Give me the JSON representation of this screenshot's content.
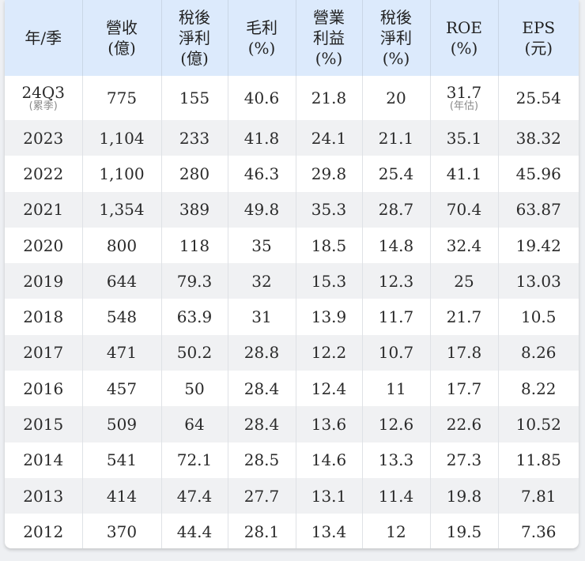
{
  "headers": [
    {
      "lines": [
        "年/季"
      ]
    },
    {
      "lines": [
        "營收",
        "(億)"
      ]
    },
    {
      "lines": [
        "稅後",
        "淨利",
        "(億)"
      ]
    },
    {
      "lines": [
        "毛利",
        "(%)"
      ]
    },
    {
      "lines": [
        "營業",
        "利益",
        "(%)"
      ]
    },
    {
      "lines": [
        "稅後",
        "淨利",
        "(%)"
      ]
    },
    {
      "lines": [
        "ROE",
        "(%)"
      ]
    },
    {
      "lines": [
        "EPS",
        "(元)"
      ]
    }
  ],
  "rows": [
    {
      "year": "24Q3",
      "year_note": "(累季)",
      "revenue": "775",
      "net_income": "155",
      "gross_margin": "40.6",
      "operating_margin": "21.8",
      "net_margin": "20",
      "roe": "31.7",
      "roe_note": "(年估)",
      "eps": "25.54"
    },
    {
      "year": "2023",
      "revenue": "1,104",
      "net_income": "233",
      "gross_margin": "41.8",
      "operating_margin": "24.1",
      "net_margin": "21.1",
      "roe": "35.1",
      "eps": "38.32"
    },
    {
      "year": "2022",
      "revenue": "1,100",
      "net_income": "280",
      "gross_margin": "46.3",
      "operating_margin": "29.8",
      "net_margin": "25.4",
      "roe": "41.1",
      "eps": "45.96"
    },
    {
      "year": "2021",
      "revenue": "1,354",
      "net_income": "389",
      "gross_margin": "49.8",
      "operating_margin": "35.3",
      "net_margin": "28.7",
      "roe": "70.4",
      "eps": "63.87"
    },
    {
      "year": "2020",
      "revenue": "800",
      "net_income": "118",
      "gross_margin": "35",
      "operating_margin": "18.5",
      "net_margin": "14.8",
      "roe": "32.4",
      "eps": "19.42"
    },
    {
      "year": "2019",
      "revenue": "644",
      "net_income": "79.3",
      "gross_margin": "32",
      "operating_margin": "15.3",
      "net_margin": "12.3",
      "roe": "25",
      "eps": "13.03"
    },
    {
      "year": "2018",
      "revenue": "548",
      "net_income": "63.9",
      "gross_margin": "31",
      "operating_margin": "13.9",
      "net_margin": "11.7",
      "roe": "21.7",
      "eps": "10.5"
    },
    {
      "year": "2017",
      "revenue": "471",
      "net_income": "50.2",
      "gross_margin": "28.8",
      "operating_margin": "12.2",
      "net_margin": "10.7",
      "roe": "17.8",
      "eps": "8.26"
    },
    {
      "year": "2016",
      "revenue": "457",
      "net_income": "50",
      "gross_margin": "28.4",
      "operating_margin": "12.4",
      "net_margin": "11",
      "roe": "17.7",
      "eps": "8.22"
    },
    {
      "year": "2015",
      "revenue": "509",
      "net_income": "64",
      "gross_margin": "28.4",
      "operating_margin": "13.6",
      "net_margin": "12.6",
      "roe": "22.6",
      "eps": "10.52"
    },
    {
      "year": "2014",
      "revenue": "541",
      "net_income": "72.1",
      "gross_margin": "28.5",
      "operating_margin": "14.6",
      "net_margin": "13.3",
      "roe": "27.3",
      "eps": "11.85"
    },
    {
      "year": "2013",
      "revenue": "414",
      "net_income": "47.4",
      "gross_margin": "27.7",
      "operating_margin": "13.1",
      "net_margin": "11.4",
      "roe": "19.8",
      "eps": "7.81"
    },
    {
      "year": "2012",
      "revenue": "370",
      "net_income": "44.4",
      "gross_margin": "28.1",
      "operating_margin": "13.4",
      "net_margin": "12",
      "roe": "19.5",
      "eps": "7.36"
    }
  ],
  "colors": {
    "header_background": "#dceafc",
    "striped_row_background": "#f0f1f3",
    "note_text": "#8a8a8a"
  }
}
